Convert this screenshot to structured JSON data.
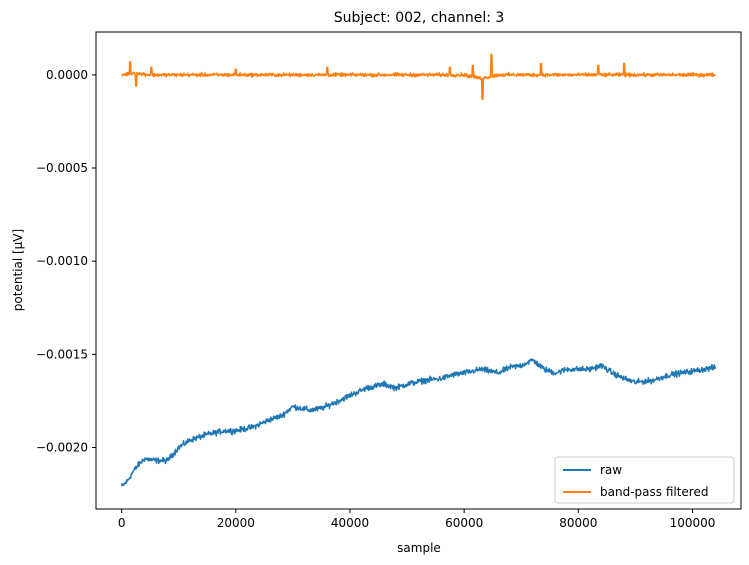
{
  "chart_data": {
    "type": "line",
    "title": "Subject: 002, channel: 3",
    "xlabel": "sample",
    "ylabel": "potential [µV]",
    "xlim": [
      -4500,
      108500
    ],
    "ylim": [
      -0.00233,
      0.00023
    ],
    "x_ticks": [
      0,
      20000,
      40000,
      60000,
      80000,
      100000
    ],
    "x_tick_labels": [
      "0",
      "20000",
      "40000",
      "60000",
      "80000",
      "100000"
    ],
    "y_ticks": [
      0.0,
      -0.0005,
      -0.001,
      -0.0015,
      -0.002
    ],
    "y_tick_labels": [
      "0.0000",
      "−0.0005",
      "−0.0010",
      "−0.0015",
      "−0.0020"
    ],
    "grid": false,
    "legend_position": "lower-right",
    "colors": {
      "raw": "#1f77b4",
      "band-pass filtered": "#ff7f0e"
    },
    "series": [
      {
        "name": "raw",
        "x": [
          0,
          1000,
          2000,
          3000,
          4000,
          6000,
          8000,
          10000,
          12000,
          15000,
          18000,
          20000,
          23000,
          26000,
          28000,
          30000,
          33000,
          35000,
          38000,
          40000,
          43000,
          46000,
          48000,
          50000,
          53000,
          56000,
          58000,
          60000,
          63000,
          66000,
          68000,
          70000,
          72000,
          74000,
          76000,
          78000,
          80000,
          82000,
          84000,
          86000,
          88000,
          90000,
          93000,
          96000,
          100000,
          104000
        ],
        "y": [
          -0.00221,
          -0.00218,
          -0.00213,
          -0.00209,
          -0.00206,
          -0.00207,
          -0.00207,
          -0.002,
          -0.00196,
          -0.00193,
          -0.00191,
          -0.00191,
          -0.00189,
          -0.00185,
          -0.00183,
          -0.00178,
          -0.0018,
          -0.00179,
          -0.00175,
          -0.00172,
          -0.00168,
          -0.00166,
          -0.00168,
          -0.00166,
          -0.00164,
          -0.00163,
          -0.00161,
          -0.0016,
          -0.00158,
          -0.0016,
          -0.00157,
          -0.00156,
          -0.00153,
          -0.00158,
          -0.0016,
          -0.00158,
          -0.00158,
          -0.00158,
          -0.00156,
          -0.0016,
          -0.00163,
          -0.00165,
          -0.00164,
          -0.00161,
          -0.00159,
          -0.00157
        ]
      },
      {
        "name": "band-pass filtered",
        "x": [
          0,
          2000,
          5000,
          10000,
          20000,
          30000,
          40000,
          50000,
          60000,
          63000,
          66000,
          70000,
          80000,
          90000,
          100000,
          104000
        ],
        "y": [
          0.0,
          1e-05,
          0.0,
          0.0,
          0.0,
          0.0,
          0.0,
          0.0,
          0.0,
          -2e-05,
          0.0,
          0.0,
          0.0,
          0.0,
          0.0,
          0.0
        ]
      }
    ]
  }
}
